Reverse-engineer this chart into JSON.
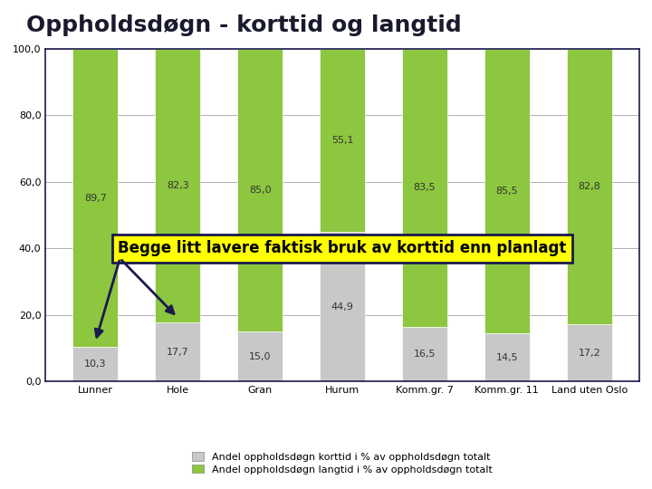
{
  "title": "Oppholdsdøgn - korttid og langtid",
  "categories": [
    "Lunner",
    "Hole",
    "Gran",
    "Hurum",
    "Komm.gr. 7",
    "Komm.gr. 11",
    "Land uten Oslo"
  ],
  "korttid": [
    10.3,
    17.7,
    15.0,
    44.9,
    16.5,
    14.5,
    17.2
  ],
  "langtid": [
    89.7,
    82.3,
    85.0,
    55.1,
    83.5,
    85.5,
    82.8
  ],
  "bar_color_korttid": "#c8c8c8",
  "bar_color_langtid": "#8dc63f",
  "bar_edge_color": "#ffffff",
  "background_color": "#ffffff",
  "plot_bg_color": "#ffffff",
  "grid_color": "#b0b0b0",
  "ylim": [
    0,
    100
  ],
  "yticks": [
    0.0,
    20.0,
    40.0,
    60.0,
    80.0,
    100.0
  ],
  "legend_korttid": "Andel oppholdsdøgn korttid i % av oppholdsdøgn totalt",
  "legend_langtid": "Andel oppholdsdøgn langtid i % av oppholdsdøgn totalt",
  "annotation_text": "Begge litt lavere faktisk bruk av korttid enn planlagt",
  "annotation_box_color": "#ffff00",
  "annotation_text_color": "#000000",
  "annotation_border_color": "#1a1a4e",
  "title_fontsize": 18,
  "tick_fontsize": 8,
  "label_fontsize": 8,
  "annotation_fontsize": 12,
  "bar_width": 0.55,
  "frame_color": "#1a1a4e",
  "arrow_color": "#1a1a4e"
}
